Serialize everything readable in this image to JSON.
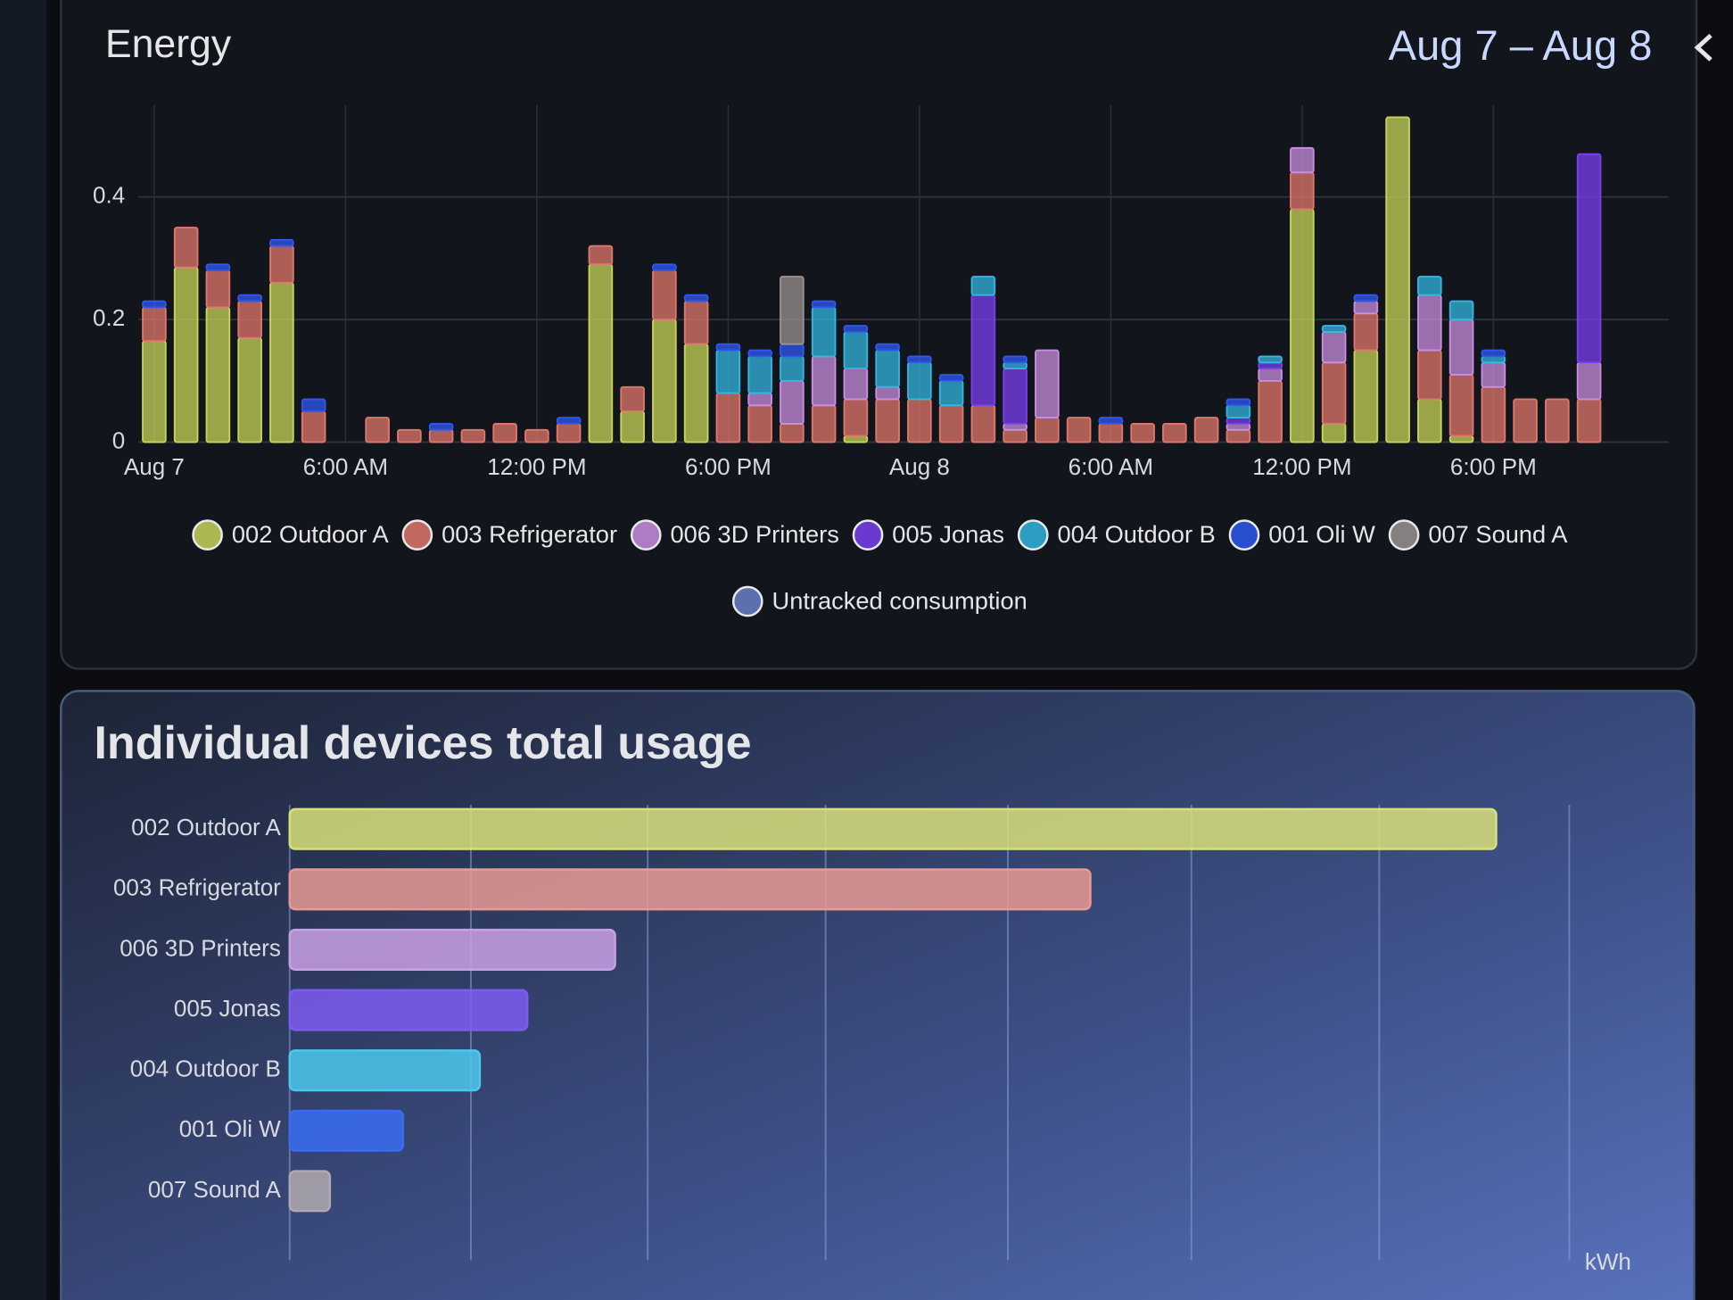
{
  "header": {
    "title": "Energy",
    "date_range": "Aug 7 – Aug 8"
  },
  "chart_data": [
    {
      "type": "bar",
      "stacked": true,
      "categories": [
        "Aug 7",
        null,
        null,
        null,
        null,
        null,
        "6:00 AM",
        null,
        null,
        null,
        null,
        null,
        "12:00 PM",
        null,
        null,
        null,
        null,
        null,
        "6:00 PM",
        null,
        null,
        null,
        null,
        null,
        "Aug 8",
        null,
        null,
        null,
        null,
        null,
        "6:00 AM",
        null,
        null,
        null,
        null,
        null,
        "12:00 PM",
        null,
        null,
        null,
        null,
        null,
        "6:00 PM",
        null,
        null,
        null,
        null,
        null
      ],
      "ylim": [
        0,
        0.55
      ],
      "yticks": [
        0,
        0.2,
        0.4
      ],
      "grid": true,
      "series": [
        {
          "name": "002 Outdoor A",
          "color": "#c8d45a",
          "values": [
            0.165,
            0.285,
            0.22,
            0.17,
            0.26,
            0,
            0,
            0,
            0,
            0,
            0,
            0,
            0,
            0,
            0.29,
            0.05,
            0.2,
            0.16,
            0,
            0,
            0,
            0,
            0.01,
            0,
            0,
            0,
            0,
            0,
            0,
            0,
            0,
            0,
            0,
            0,
            0,
            0,
            0.38,
            0.03,
            0.15,
            0.53,
            0.07,
            0.01,
            0,
            0,
            0,
            0,
            0,
            0
          ]
        },
        {
          "name": "003 Refrigerator",
          "color": "#e0776c",
          "values": [
            0.055,
            0.065,
            0.06,
            0.06,
            0.06,
            0.05,
            0,
            0.04,
            0.02,
            0.02,
            0.02,
            0.03,
            0.02,
            0.03,
            0.03,
            0.04,
            0.08,
            0.07,
            0.08,
            0.06,
            0.03,
            0.06,
            0.06,
            0.07,
            0.07,
            0.06,
            0.06,
            0.02,
            0.04,
            0.04,
            0.03,
            0.03,
            0.03,
            0.04,
            0.02,
            0.1,
            0.06,
            0.1,
            0.06,
            0,
            0.08,
            0.1,
            0.09,
            0.07,
            0.07,
            0.07,
            0,
            0
          ]
        },
        {
          "name": "006 3D Printers",
          "color": "#c98ee0",
          "values": [
            0,
            0,
            0,
            0,
            0,
            0,
            0,
            0,
            0,
            0,
            0,
            0,
            0,
            0,
            0,
            0,
            0,
            0,
            0,
            0.02,
            0.07,
            0.08,
            0.05,
            0.02,
            0,
            0,
            0,
            0.01,
            0.11,
            0,
            0,
            0,
            0,
            0,
            0.01,
            0.02,
            0.04,
            0.05,
            0.02,
            0,
            0.09,
            0.09,
            0.04,
            0,
            0,
            0.06,
            0,
            0
          ]
        },
        {
          "name": "005 Jonas",
          "color": "#7a3ff0",
          "values": [
            0,
            0,
            0,
            0,
            0,
            0,
            0,
            0,
            0,
            0,
            0,
            0,
            0,
            0,
            0,
            0,
            0,
            0,
            0,
            0,
            0,
            0,
            0,
            0,
            0,
            0,
            0.18,
            0.09,
            0,
            0,
            0,
            0,
            0,
            0,
            0.01,
            0.01,
            0,
            0,
            0,
            0,
            0,
            0,
            0,
            0,
            0,
            0.34,
            0,
            0
          ]
        },
        {
          "name": "004 Outdoor B",
          "color": "#33b6e0",
          "values": [
            0,
            0,
            0,
            0,
            0,
            0,
            0,
            0,
            0,
            0,
            0,
            0,
            0,
            0,
            0,
            0,
            0,
            0,
            0.07,
            0.06,
            0.04,
            0.08,
            0.06,
            0.06,
            0.06,
            0.04,
            0.03,
            0.01,
            0,
            0,
            0,
            0,
            0,
            0,
            0.02,
            0.01,
            0,
            0.01,
            0,
            0,
            0.03,
            0.03,
            0.01,
            0,
            0,
            0,
            0,
            0
          ]
        },
        {
          "name": "001 Oli W",
          "color": "#2f58f0",
          "values": [
            0.01,
            0,
            0.01,
            0.01,
            0.01,
            0.02,
            0,
            0,
            0,
            0.01,
            0,
            0,
            0,
            0.01,
            0,
            0,
            0.01,
            0.01,
            0.01,
            0.01,
            0.02,
            0.01,
            0.01,
            0.01,
            0.01,
            0.01,
            0,
            0.01,
            0,
            0,
            0.01,
            0,
            0,
            0,
            0.01,
            0,
            0,
            0,
            0.01,
            0,
            0,
            0,
            0.01,
            0,
            0,
            0,
            0,
            0
          ]
        },
        {
          "name": "007 Sound A",
          "color": "#9b9292",
          "values": [
            0,
            0,
            0,
            0,
            0,
            0,
            0,
            0,
            0,
            0,
            0,
            0,
            0,
            0,
            0,
            0,
            0,
            0,
            0,
            0,
            0.11,
            0,
            0,
            0,
            0,
            0,
            0,
            0,
            0,
            0,
            0,
            0,
            0,
            0,
            0,
            0,
            0,
            0,
            0,
            0,
            0,
            0,
            0,
            0,
            0,
            0,
            0,
            0
          ]
        },
        {
          "name": "Untracked consumption",
          "color": "#6a80c8",
          "values": [
            0,
            0,
            0,
            0,
            0,
            0,
            0,
            0,
            0,
            0,
            0,
            0,
            0,
            0,
            0,
            0,
            0,
            0,
            0,
            0,
            0,
            0,
            0,
            0,
            0,
            0,
            0,
            0,
            0,
            0,
            0,
            0,
            0,
            0,
            0,
            0,
            0,
            0,
            0,
            0,
            0,
            0,
            0,
            0,
            0,
            0,
            0,
            0
          ]
        }
      ]
    },
    {
      "type": "hbar",
      "title": "Individual devices total usage",
      "xlabel": "kWh",
      "categories": [
        "002 Outdoor A",
        "003 Refrigerator",
        "006 3D Printers",
        "005 Jonas",
        "004 Outdoor B",
        "001 Oli W",
        "007 Sound A"
      ],
      "values": [
        3.3,
        2.19,
        0.89,
        0.65,
        0.52,
        0.31,
        0.11
      ],
      "colors": [
        "#d9e07a",
        "#e89a94",
        "#c9a0e4",
        "#7c5cf0",
        "#4cc8ec",
        "#3a6cf0",
        "#b0aab0"
      ],
      "xlim": [
        0,
        3.5
      ]
    }
  ]
}
